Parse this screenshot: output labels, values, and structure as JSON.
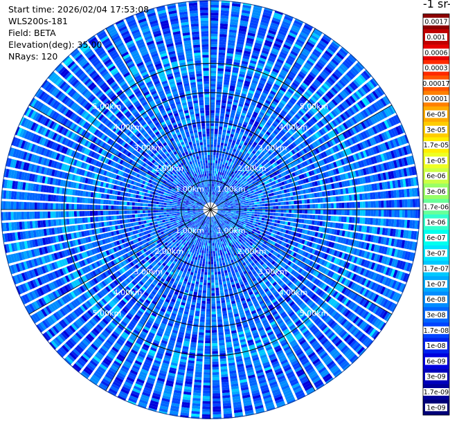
{
  "info": {
    "start_time": "Start time: 2026/02/04 17:53:08",
    "instrument": "WLS200s-181",
    "field": "Field: BETA",
    "elevation": "Elevation(deg): 35.00",
    "nrays": "NRays: 120"
  },
  "colorbar": {
    "title": "-1 sr-",
    "levels": [
      {
        "label": "0.0017",
        "color": "#8b0000"
      },
      {
        "label": "0.001",
        "color": "#c00000"
      },
      {
        "label": "0.0006",
        "color": "#e60000"
      },
      {
        "label": "0.0003",
        "color": "#ff2a00"
      },
      {
        "label": "0.00017",
        "color": "#ff5500"
      },
      {
        "label": "0.0001",
        "color": "#ff8000"
      },
      {
        "label": "6e-05",
        "color": "#ffaa00"
      },
      {
        "label": "3e-05",
        "color": "#ffcc00"
      },
      {
        "label": "1.7e-05",
        "color": "#ffee00"
      },
      {
        "label": "1e-05",
        "color": "#eeff22"
      },
      {
        "label": "6e-06",
        "color": "#ccff44"
      },
      {
        "label": "3e-06",
        "color": "#99ff66"
      },
      {
        "label": "1.7e-06",
        "color": "#66ff99"
      },
      {
        "label": "1e-06",
        "color": "#33ffcc"
      },
      {
        "label": "6e-07",
        "color": "#00ffee"
      },
      {
        "label": "3e-07",
        "color": "#00e5ff"
      },
      {
        "label": "1.7e-07",
        "color": "#00c8ff"
      },
      {
        "label": "1e-07",
        "color": "#00aaff"
      },
      {
        "label": "6e-08",
        "color": "#008cff"
      },
      {
        "label": "3e-08",
        "color": "#0066ff"
      },
      {
        "label": "1.7e-08",
        "color": "#0044ff"
      },
      {
        "label": "1e-08",
        "color": "#0022ee"
      },
      {
        "label": "6e-09",
        "color": "#0000dd"
      },
      {
        "label": "3e-09",
        "color": "#0000bb"
      },
      {
        "label": "1.7e-09",
        "color": "#000099"
      },
      {
        "label": "1e-09",
        "color": "#000077"
      }
    ]
  },
  "chart_data": {
    "type": "heatmap",
    "projection": "polar PPI",
    "nrays": 120,
    "range_rings_km": [
      1,
      2,
      3,
      4,
      5
    ],
    "ring_labels": [
      "1.00km",
      "2.00km",
      "3.00km",
      "4.00km",
      "5.00km"
    ],
    "dominant_value_range": [
      "1e-08",
      "1e-06"
    ],
    "colors": {
      "ring": "#000000",
      "ray_gap": "#ffffff",
      "background": "#ffffff"
    }
  }
}
